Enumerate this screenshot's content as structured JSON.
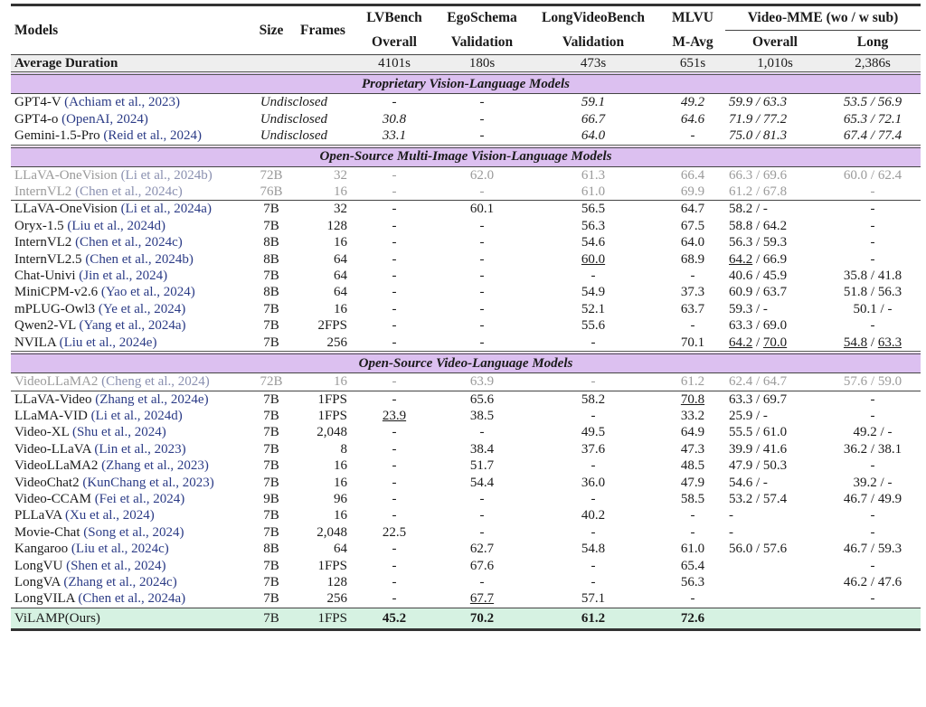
{
  "header": {
    "models": "Models",
    "size": "Size",
    "frames": "Frames",
    "benchmarks": [
      {
        "name": "LVBench",
        "sub": "Overall"
      },
      {
        "name": "EgoSchema",
        "sub": "Validation"
      },
      {
        "name": "LongVideoBench",
        "sub": "Validation"
      },
      {
        "name": "MLVU",
        "sub": "M-Avg"
      }
    ],
    "videomme": "Video-MME (wo / w sub)",
    "videomme_overall": "Overall",
    "videomme_long": "Long"
  },
  "average": {
    "label": "Average Duration",
    "values": [
      "4101s",
      "180s",
      "473s",
      "651s",
      "1,010s",
      "2,386s"
    ]
  },
  "sections": [
    {
      "title": "Proprietary Vision-Language Models",
      "italic": true,
      "groups": [
        [
          {
            "model": "GPT4-V",
            "cite": "(Achiam et al., 2023)",
            "size": "Undisclosed",
            "frames": "",
            "cells": [
              "-",
              "-",
              "59.1",
              "49.2",
              "59.9 / 63.3",
              "53.5 / 56.9"
            ]
          },
          {
            "model": "GPT4-o",
            "cite": "(OpenAI, 2024)",
            "size": "Undisclosed",
            "frames": "",
            "cells": [
              "30.8",
              "-",
              "66.7",
              "64.6",
              "71.9 / 77.2",
              "65.3 / 72.1"
            ]
          },
          {
            "model": "Gemini-1.5-Pro",
            "cite": "(Reid et al., 2024)",
            "size": "Undisclosed",
            "frames": "",
            "cells": [
              "33.1",
              "-",
              "64.0",
              "-",
              "75.0 / 81.3",
              "67.4 / 77.4"
            ]
          }
        ]
      ]
    },
    {
      "title": "Open-Source Multi-Image Vision-Language Models",
      "groups": [
        [
          {
            "model": "LLaVA-OneVision",
            "cite": "(Li et al., 2024b)",
            "size": "72B",
            "frames": "32",
            "gray": true,
            "cells": [
              "-",
              "62.0",
              "61.3",
              "66.4",
              "66.3 / 69.6",
              "60.0 / 62.4"
            ]
          },
          {
            "model": "InternVL2",
            "cite": "(Chen et al., 2024c)",
            "size": "76B",
            "frames": "16",
            "gray": true,
            "cells": [
              "-",
              "-",
              "61.0",
              "69.9",
              "61.2 / 67.8",
              "-"
            ]
          }
        ],
        [
          {
            "model": "LLaVA-OneVision",
            "cite": "(Li et al., 2024a)",
            "size": "7B",
            "frames": "32",
            "cells": [
              "-",
              "60.1",
              "56.5",
              "64.7",
              "58.2 / -",
              "-"
            ]
          },
          {
            "model": "Oryx-1.5",
            "cite": "(Liu et al., 2024d)",
            "size": "7B",
            "frames": "128",
            "cells": [
              "-",
              "-",
              "56.3",
              "67.5",
              "58.8 / 64.2",
              "-"
            ]
          },
          {
            "model": "InternVL2",
            "cite": "(Chen et al., 2024c)",
            "size": "8B",
            "frames": "16",
            "cells": [
              "-",
              "-",
              "54.6",
              "64.0",
              "56.3 / 59.3",
              "-"
            ]
          },
          {
            "model": "InternVL2.5",
            "cite": "(Chen et al., 2024b)",
            "size": "8B",
            "frames": "64",
            "cells": [
              "-",
              "-",
              "60.0",
              "68.9",
              "64.2 / 66.9",
              "-"
            ],
            "u": [
              "2",
              "4a"
            ]
          },
          {
            "model": "Chat-Univi",
            "cite": "(Jin et al., 2024)",
            "size": "7B",
            "frames": "64",
            "cells": [
              "-",
              "-",
              "-",
              "-",
              "40.6 / 45.9",
              "35.8 / 41.8"
            ]
          },
          {
            "model": "MiniCPM-v2.6",
            "cite": "(Yao et al., 2024)",
            "size": "8B",
            "frames": "64",
            "cells": [
              "-",
              "-",
              "54.9",
              "37.3",
              "60.9 / 63.7",
              "51.8 / 56.3"
            ]
          },
          {
            "model": "mPLUG-Owl3",
            "cite": "(Ye et al., 2024)",
            "size": "7B",
            "frames": "16",
            "cells": [
              "-",
              "-",
              "52.1",
              "63.7",
              "59.3 / -",
              "50.1 / -"
            ]
          },
          {
            "model": "Qwen2-VL",
            "cite": "(Yang et al., 2024a)",
            "size": "7B",
            "frames": "2FPS",
            "cells": [
              "-",
              "-",
              "55.6",
              "-",
              "63.3 / 69.0",
              "-"
            ]
          },
          {
            "model": "NVILA",
            "cite": "(Liu et al., 2024e)",
            "size": "7B",
            "frames": "256",
            "cells": [
              "-",
              "-",
              "-",
              "70.1",
              "64.2 / 70.0",
              "54.8 / 63.3"
            ],
            "u": [
              "4a",
              "4b",
              "5a",
              "5b"
            ]
          }
        ]
      ]
    },
    {
      "title": "Open-Source Video-Language Models",
      "groups": [
        [
          {
            "model": "VideoLLaMA2",
            "cite": "(Cheng et al., 2024)",
            "size": "72B",
            "frames": "16",
            "gray": true,
            "cells": [
              "-",
              "63.9",
              "-",
              "61.2",
              "62.4 / 64.7",
              "57.6 / 59.0"
            ]
          }
        ],
        [
          {
            "model": "LLaVA-Video",
            "cite": "(Zhang et al., 2024e)",
            "size": "7B",
            "frames": "1FPS",
            "cells": [
              "-",
              "65.6",
              "58.2",
              "70.8",
              "63.3 / 69.7",
              "-"
            ],
            "u": [
              "3"
            ]
          },
          {
            "model": "LLaMA-VID",
            "cite": "(Li et al., 2024d)",
            "size": "7B",
            "frames": "1FPS",
            "cells": [
              "23.9",
              "38.5",
              "-",
              "33.2",
              "25.9 / -",
              "-"
            ],
            "u": [
              "0"
            ]
          },
          {
            "model": "Video-XL",
            "cite": "(Shu et al., 2024)",
            "size": "7B",
            "frames": "2,048",
            "cells": [
              "-",
              "-",
              "49.5",
              "64.9",
              "55.5 / 61.0",
              "49.2 / -"
            ]
          },
          {
            "model": "Video-LLaVA",
            "cite": "(Lin et al., 2023)",
            "size": "7B",
            "frames": "8",
            "cells": [
              "-",
              "38.4",
              "37.6",
              "47.3",
              "39.9 / 41.6",
              "36.2 / 38.1"
            ]
          },
          {
            "model": "VideoLLaMA2",
            "cite": "(Zhang et al., 2023)",
            "size": "7B",
            "frames": "16",
            "cells": [
              "-",
              "51.7",
              "-",
              "48.5",
              "47.9 / 50.3",
              "-"
            ]
          },
          {
            "model": "VideoChat2",
            "cite": "(KunChang et al., 2023)",
            "size": "7B",
            "frames": "16",
            "cells": [
              "-",
              "54.4",
              "36.0",
              "47.9",
              "54.6 / -",
              "39.2 / -"
            ]
          },
          {
            "model": "Video-CCAM",
            "cite": "(Fei et al., 2024)",
            "size": "9B",
            "frames": "96",
            "cells": [
              "-",
              "-",
              "-",
              "58.5",
              "53.2 / 57.4",
              "46.7 / 49.9"
            ]
          },
          {
            "model": "PLLaVA",
            "cite": "(Xu et al., 2024)",
            "size": "7B",
            "frames": "16",
            "cells": [
              "-",
              "-",
              "40.2",
              "-",
              "-",
              "-"
            ]
          },
          {
            "model": "Movie-Chat",
            "cite": "(Song et al., 2024)",
            "size": "7B",
            "frames": "2,048",
            "cells": [
              "22.5",
              "-",
              "-",
              "-",
              "-",
              "-"
            ]
          },
          {
            "model": "Kangaroo",
            "cite": "(Liu et al., 2024c)",
            "size": "8B",
            "frames": "64",
            "cells": [
              "-",
              "62.7",
              "54.8",
              "61.0",
              "56.0 / 57.6",
              "46.7 / 59.3"
            ]
          },
          {
            "model": "LongVU",
            "cite": "(Shen et al., 2024)",
            "size": "7B",
            "frames": "1FPS",
            "cells": [
              "-",
              "67.6",
              "-",
              "65.4",
              "",
              "-"
            ]
          },
          {
            "model": "LongVA",
            "cite": "(Zhang et al., 2024c)",
            "size": "7B",
            "frames": "128",
            "cells": [
              "-",
              "-",
              "-",
              "56.3",
              "",
              "46.2 / 47.6"
            ]
          },
          {
            "model": "LongVILA",
            "cite": "(Chen et al., 2024a)",
            "size": "7B",
            "frames": "256",
            "cells": [
              "-",
              "67.7",
              "57.1",
              "-",
              "",
              "-"
            ],
            "u": [
              "1"
            ]
          }
        ]
      ]
    }
  ],
  "ours": {
    "model": "ViLAMP(Ours)",
    "size": "7B",
    "frames": "1FPS",
    "cells": [
      "45.2",
      "70.2",
      "61.2",
      "72.6",
      "",
      ""
    ]
  }
}
